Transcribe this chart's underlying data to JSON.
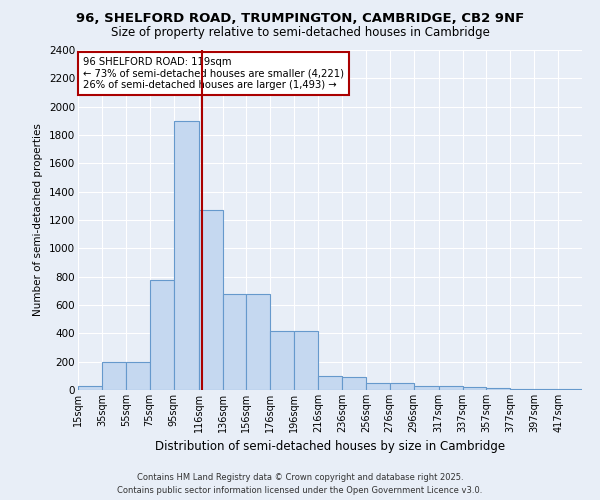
{
  "title_line1": "96, SHELFORD ROAD, TRUMPINGTON, CAMBRIDGE, CB2 9NF",
  "title_line2": "Size of property relative to semi-detached houses in Cambridge",
  "xlabel": "Distribution of semi-detached houses by size in Cambridge",
  "ylabel": "Number of semi-detached properties",
  "bar_color": "#c5d8f0",
  "bar_edge_color": "#6699cc",
  "background_color": "#e8eef7",
  "grid_color": "#ffffff",
  "annotation_box_color": "#ffffff",
  "annotation_box_edge": "#aa0000",
  "vline_color": "#aa0000",
  "footer_line1": "Contains HM Land Registry data © Crown copyright and database right 2025.",
  "footer_line2": "Contains public sector information licensed under the Open Government Licence v3.0.",
  "property_size": 119,
  "property_label": "96 SHELFORD ROAD: 119sqm",
  "pct_smaller": 73,
  "count_smaller": 4221,
  "pct_larger": 26,
  "count_larger": 1493,
  "bin_labels": [
    "15sqm",
    "35sqm",
    "55sqm",
    "75sqm",
    "95sqm",
    "116sqm",
    "136sqm",
    "156sqm",
    "176sqm",
    "196sqm",
    "216sqm",
    "236sqm",
    "256sqm",
    "276sqm",
    "296sqm",
    "317sqm",
    "337sqm",
    "357sqm",
    "377sqm",
    "397sqm",
    "417sqm"
  ],
  "bin_edges": [
    15,
    35,
    55,
    75,
    95,
    116,
    136,
    156,
    176,
    196,
    216,
    236,
    256,
    276,
    296,
    317,
    337,
    357,
    377,
    397,
    417,
    437
  ],
  "bar_heights": [
    25,
    200,
    200,
    780,
    1900,
    1270,
    680,
    680,
    420,
    420,
    100,
    95,
    50,
    50,
    30,
    25,
    18,
    15,
    8,
    8,
    4
  ],
  "ylim": [
    0,
    2400
  ],
  "yticks": [
    0,
    200,
    400,
    600,
    800,
    1000,
    1200,
    1400,
    1600,
    1800,
    2000,
    2200,
    2400
  ]
}
